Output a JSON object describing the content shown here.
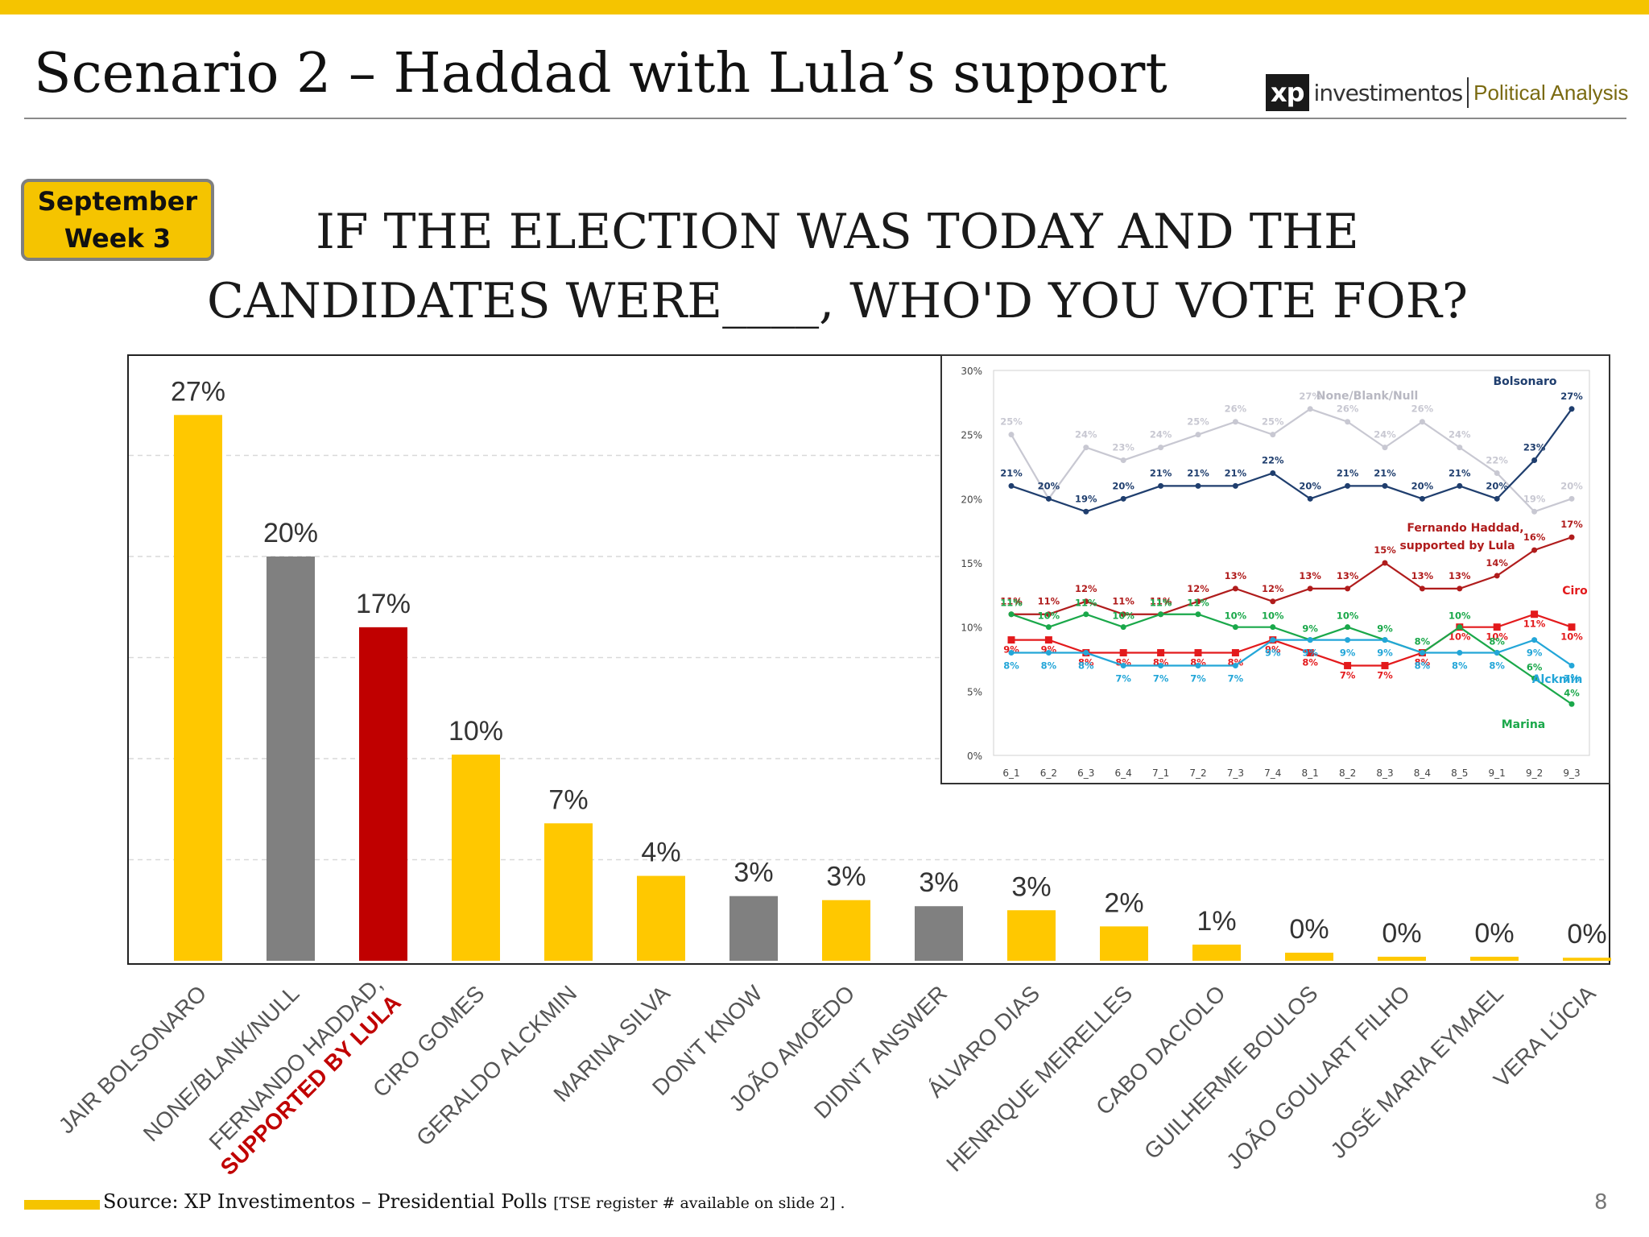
{
  "header": {
    "title": "Scenario 2 – Haddad with Lula’s support",
    "logo_mark": "xp",
    "logo_name": "investimentos",
    "logo_tagline": "Political Analysis"
  },
  "badge": {
    "line1": "September",
    "line2": "Week 3"
  },
  "question": {
    "line1": "IF THE ELECTION WAS TODAY AND THE",
    "line2": "CANDIDATES WERE____, WHO'D YOU VOTE FOR?"
  },
  "colors": {
    "yellow": "#FFC800",
    "gray": "#808080",
    "red": "#C00000",
    "accent_bar": "#F5C400"
  },
  "chart_data": [
    {
      "type": "bar",
      "categories": [
        "JAIR BOLSONARO",
        "NONE/BLANK/NULL",
        "FERNANDO HADDAD, SUPPORTED BY LULA",
        "CIRO GOMES",
        "GERALDO ALCKMIN",
        "MARINA SILVA",
        "DON'T KNOW",
        "JOÃO AMOÊDO",
        "DIDN'T ANSWER",
        "ÁLVARO DIAS",
        "HENRIQUE MEIRELLES",
        "CABO DACIOLO",
        "GUILHERME BOULOS",
        "JOÃO GOULART FILHO",
        "JOSÉ MARIA EYMAEL",
        "VERA LÚCIA"
      ],
      "category_lines": [
        [
          "JAIR BOLSONARO"
        ],
        [
          "NONE/BLANK/NULL"
        ],
        [
          "FERNANDO HADDAD,",
          "SUPPORTED BY LULA"
        ],
        [
          "CIRO GOMES"
        ],
        [
          "GERALDO ALCKMIN"
        ],
        [
          "MARINA SILVA"
        ],
        [
          "DON'T KNOW"
        ],
        [
          "JOÃO AMOÊDO"
        ],
        [
          "DIDN'T ANSWER"
        ],
        [
          "ÁLVARO DIAS"
        ],
        [
          "HENRIQUE MEIRELLES"
        ],
        [
          "CABO DACIOLO"
        ],
        [
          "GUILHERME BOULOS"
        ],
        [
          "JOÃO GOULART FILHO"
        ],
        [
          "JOSÉ MARIA EYMAEL"
        ],
        [
          "VERA LÚCIA"
        ]
      ],
      "values": [
        27.0,
        20.0,
        16.5,
        10.2,
        6.8,
        4.2,
        3.2,
        3.0,
        2.7,
        2.5,
        1.7,
        0.8,
        0.4,
        0.2,
        0.2,
        0.15
      ],
      "value_labels": [
        "27%",
        "20%",
        "17%",
        "10%",
        "7%",
        "4%",
        "3%",
        "3%",
        "3%",
        "3%",
        "2%",
        "1%",
        "0%",
        "0%",
        "0%",
        "0%"
      ],
      "bar_colors": [
        "yellow",
        "gray",
        "red",
        "yellow",
        "yellow",
        "yellow",
        "gray",
        "yellow",
        "gray",
        "yellow",
        "yellow",
        "yellow",
        "yellow",
        "yellow",
        "yellow",
        "yellow"
      ],
      "ylim": [
        0,
        30
      ],
      "grid": true
    },
    {
      "type": "line",
      "x": [
        "6_1",
        "6_2",
        "6_3",
        "6_4",
        "7_1",
        "7_2",
        "7_3",
        "7_4",
        "8_1",
        "8_2",
        "8_3",
        "8_4",
        "8_5",
        "9_1",
        "9_2",
        "9_3"
      ],
      "y_ticks": [
        "0%",
        "5%",
        "10%",
        "15%",
        "20%",
        "25%",
        "30%"
      ],
      "ylim": [
        0,
        30
      ],
      "series": [
        {
          "name": "None/Blank/Null",
          "color": "#c8c8d2",
          "marker": "circle",
          "values": [
            25,
            20,
            24,
            23,
            24,
            25,
            26,
            25,
            27,
            26,
            24,
            26,
            24,
            22,
            19,
            20
          ],
          "labels": [
            "25%",
            "20%",
            "24%",
            "23%",
            "24%",
            "25%",
            "26%",
            "25%",
            "27%",
            "26%",
            "24%",
            "26%",
            "24%",
            "22%",
            "19%",
            "20%"
          ]
        },
        {
          "name": "Bolsonaro",
          "color": "#1f3e6e",
          "marker": "circle",
          "values": [
            21,
            20,
            19,
            20,
            21,
            21,
            21,
            22,
            20,
            21,
            21,
            20,
            21,
            20,
            23,
            27
          ],
          "labels": [
            "21%",
            "20%",
            "19%",
            "20%",
            "21%",
            "21%",
            "21%",
            "22%",
            "20%",
            "21%",
            "21%",
            "20%",
            "21%",
            "20%",
            "23%",
            "27%"
          ]
        },
        {
          "name": "Fernando Haddad, supported by Lula",
          "color": "#b01c1c",
          "marker": "circle",
          "values": [
            11,
            11,
            12,
            11,
            11,
            12,
            13,
            12,
            13,
            13,
            15,
            13,
            13,
            14,
            16,
            17
          ],
          "labels": [
            "11%",
            "11%",
            "12%",
            "11%",
            "11%",
            "12%",
            "13%",
            "12%",
            "13%",
            "13%",
            "15%",
            "13%",
            "13%",
            "14%",
            "16%",
            "17%"
          ]
        },
        {
          "name": "Ciro",
          "color": "#e31a1c",
          "marker": "square",
          "values": [
            9,
            9,
            8,
            8,
            8,
            8,
            8,
            9,
            8,
            7,
            7,
            8,
            10,
            10,
            11,
            10
          ],
          "labels": [
            "9%",
            "9%",
            "8%",
            "8%",
            "8%",
            "8%",
            "8%",
            "9%",
            "8%",
            "7%",
            "7%",
            "8%",
            "10%",
            "10%",
            "11%",
            "10%"
          ]
        },
        {
          "name": "Marina",
          "color": "#1aa84a",
          "marker": "circle",
          "values": [
            11,
            10,
            11,
            10,
            11,
            11,
            10,
            10,
            9,
            10,
            9,
            8,
            10,
            8,
            6,
            4
          ],
          "labels": [
            "11%",
            "10%",
            "11%",
            "10%",
            "11%",
            "11%",
            "10%",
            "10%",
            "9%",
            "10%",
            "9%",
            "8%",
            "10%",
            "8%",
            "6%",
            "4%"
          ]
        },
        {
          "name": "Alckmin",
          "color": "#23a6d8",
          "marker": "circle",
          "values": [
            8,
            8,
            8,
            7,
            7,
            7,
            7,
            9,
            9,
            9,
            9,
            8,
            8,
            8,
            9,
            7
          ],
          "labels": [
            "8%",
            "8%",
            "8%",
            "7%",
            "7%",
            "7%",
            "7%",
            "9%",
            "9%",
            "9%",
            "9%",
            "8%",
            "8%",
            "8%",
            "9%",
            "7%"
          ]
        }
      ],
      "legend_labels": {
        "bolsonaro": "Bolsonaro",
        "none": "None/Blank/Null",
        "haddad_l1": "Fernando Haddad,",
        "haddad_l2": "supported by Lula",
        "ciro": "Ciro",
        "alckmin": "Alckmin",
        "marina": "Marina"
      }
    }
  ],
  "footer": {
    "source": "Source: XP Investimentos – Presidential Polls",
    "source_note": "[TSE register # available on slide 2] .",
    "page_number": "8"
  }
}
